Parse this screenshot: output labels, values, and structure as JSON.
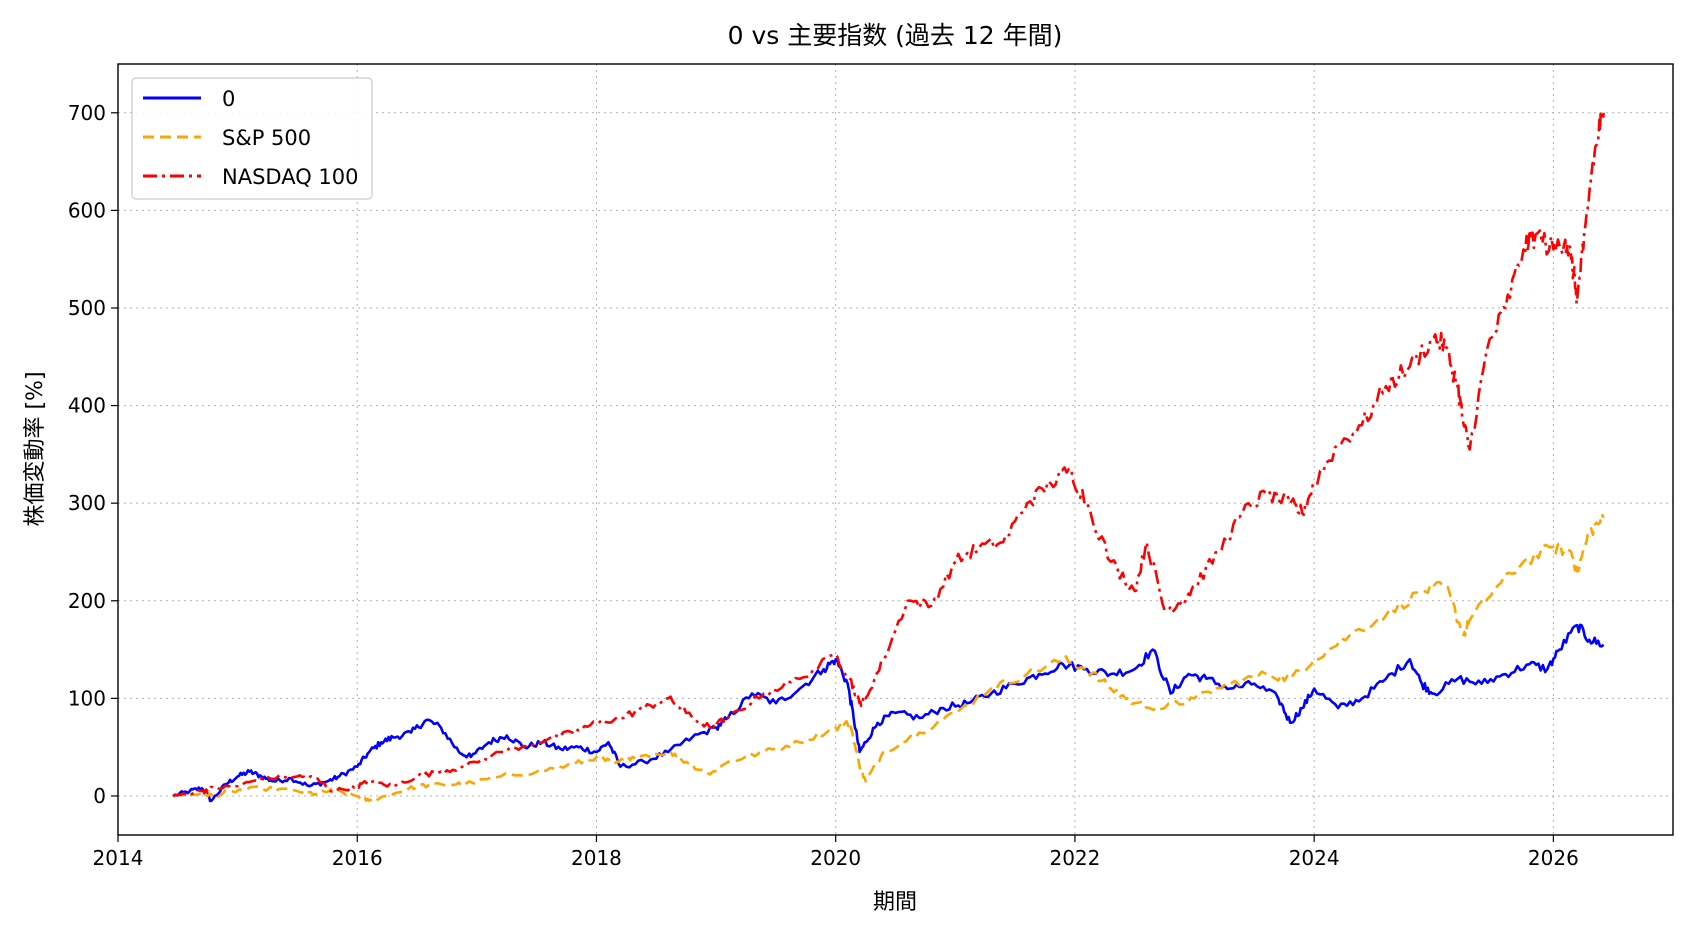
{
  "chart_data": {
    "type": "line",
    "title": "0 vs 主要指数 (過去 12 年間)",
    "xlabel": "期間",
    "ylabel": "株価変動率 [%]",
    "xlim": [
      2014.0,
      2027.0
    ],
    "ylim": [
      -40,
      750
    ],
    "xticks": [
      2014,
      2016,
      2018,
      2020,
      2022,
      2024,
      2026
    ],
    "xtick_labels": [
      "2014",
      "2016",
      "2018",
      "2020",
      "2022",
      "2024",
      "2026"
    ],
    "yticks": [
      0,
      100,
      200,
      300,
      400,
      500,
      600,
      700
    ],
    "ytick_labels": [
      "0",
      "100",
      "200",
      "300",
      "400",
      "500",
      "600",
      "700"
    ],
    "grid": true,
    "legend_position": "top-left",
    "series": [
      {
        "name": "0",
        "color": "#0000ff",
        "style": "solid",
        "x": [
          2014.46,
          2014.6,
          2014.7,
          2014.78,
          2014.9,
          2015.0,
          2015.1,
          2015.2,
          2015.3,
          2015.45,
          2015.6,
          2015.75,
          2015.85,
          2016.0,
          2016.1,
          2016.2,
          2016.3,
          2016.45,
          2016.58,
          2016.7,
          2016.85,
          2016.95,
          2017.1,
          2017.25,
          2017.4,
          2017.55,
          2017.7,
          2017.85,
          2018.0,
          2018.1,
          2018.2,
          2018.4,
          2018.6,
          2018.8,
          2019.0,
          2019.1,
          2019.3,
          2019.5,
          2019.7,
          2019.9,
          2020.0,
          2020.1,
          2020.15,
          2020.2,
          2020.25,
          2020.35,
          2020.5,
          2020.7,
          2020.9,
          2021.1,
          2021.3,
          2021.5,
          2021.7,
          2021.9,
          2022.1,
          2022.3,
          2022.5,
          2022.65,
          2022.8,
          2022.95,
          2023.1,
          2023.3,
          2023.5,
          2023.7,
          2023.8,
          2023.9,
          2024.0,
          2024.2,
          2024.4,
          2024.6,
          2024.8,
          2024.9,
          2025.0,
          2025.2,
          2025.4,
          2025.6,
          2025.8,
          2025.95,
          2026.05,
          2026.2,
          2026.3,
          2026.42
        ],
        "y": [
          0,
          5,
          8,
          -5,
          12,
          20,
          25,
          20,
          15,
          18,
          10,
          15,
          20,
          30,
          45,
          55,
          60,
          65,
          78,
          70,
          45,
          40,
          55,
          62,
          50,
          55,
          48,
          50,
          45,
          55,
          30,
          35,
          45,
          60,
          70,
          80,
          105,
          95,
          110,
          130,
          140,
          115,
          80,
          45,
          55,
          75,
          85,
          80,
          90,
          95,
          105,
          115,
          125,
          135,
          130,
          125,
          130,
          150,
          105,
          125,
          120,
          110,
          115,
          100,
          75,
          90,
          110,
          90,
          100,
          120,
          140,
          115,
          105,
          120,
          115,
          125,
          135,
          130,
          150,
          175,
          160,
          155
        ]
      },
      {
        "name": "S&P 500",
        "color": "#ffa500",
        "style": "dashed",
        "x": [
          2014.46,
          2014.7,
          2014.8,
          2014.95,
          2015.2,
          2015.5,
          2015.65,
          2015.8,
          2016.0,
          2016.1,
          2016.3,
          2016.5,
          2016.7,
          2016.9,
          2017.2,
          2017.5,
          2017.8,
          2018.0,
          2018.15,
          2018.3,
          2018.6,
          2018.75,
          2018.95,
          2019.1,
          2019.4,
          2019.7,
          2020.0,
          2020.12,
          2020.2,
          2020.25,
          2020.4,
          2020.7,
          2021.0,
          2021.3,
          2021.6,
          2021.9,
          2022.1,
          2022.3,
          2022.5,
          2022.75,
          2023.0,
          2023.3,
          2023.6,
          2023.8,
          2024.0,
          2024.3,
          2024.6,
          2024.9,
          2025.1,
          2025.25,
          2025.3,
          2025.5,
          2025.75,
          2026.0,
          2026.15,
          2026.2,
          2026.3,
          2026.42
        ],
        "y": [
          0,
          3,
          0,
          5,
          8,
          5,
          2,
          6,
          0,
          -5,
          2,
          10,
          12,
          12,
          20,
          25,
          32,
          40,
          33,
          40,
          45,
          35,
          22,
          35,
          45,
          55,
          70,
          75,
          30,
          15,
          45,
          65,
          85,
          110,
          125,
          140,
          130,
          110,
          95,
          90,
          100,
          115,
          125,
          120,
          140,
          165,
          185,
          210,
          215,
          165,
          180,
          210,
          240,
          255,
          250,
          230,
          270,
          285
        ]
      },
      {
        "name": "NASDAQ 100",
        "color": "#ff0000",
        "style": "dashdot",
        "x": [
          2014.46,
          2014.7,
          2014.8,
          2015.0,
          2015.2,
          2015.5,
          2015.65,
          2015.8,
          2016.0,
          2016.1,
          2016.3,
          2016.5,
          2016.7,
          2016.9,
          2017.2,
          2017.5,
          2017.8,
          2018.0,
          2018.2,
          2018.4,
          2018.6,
          2018.75,
          2018.95,
          2019.1,
          2019.4,
          2019.7,
          2020.0,
          2020.12,
          2020.2,
          2020.25,
          2020.4,
          2020.6,
          2020.8,
          2021.0,
          2021.2,
          2021.4,
          2021.6,
          2021.8,
          2021.95,
          2022.1,
          2022.3,
          2022.5,
          2022.6,
          2022.75,
          2022.9,
          2023.0,
          2023.2,
          2023.4,
          2023.6,
          2023.8,
          2023.9,
          2024.0,
          2024.2,
          2024.4,
          2024.6,
          2024.8,
          2025.0,
          2025.1,
          2025.2,
          2025.25,
          2025.3,
          2025.45,
          2025.6,
          2025.75,
          2025.85,
          2026.0,
          2026.1,
          2026.15,
          2026.2,
          2026.25,
          2026.32,
          2026.38,
          2026.42
        ],
        "y": [
          0,
          5,
          8,
          10,
          18,
          20,
          18,
          5,
          10,
          15,
          10,
          20,
          25,
          30,
          45,
          55,
          65,
          75,
          80,
          90,
          100,
          85,
          70,
          80,
          105,
          120,
          145,
          120,
          95,
          100,
          140,
          200,
          195,
          240,
          255,
          260,
          300,
          320,
          335,
          300,
          240,
          210,
          260,
          190,
          200,
          215,
          250,
          290,
          310,
          300,
          290,
          320,
          360,
          380,
          420,
          440,
          470,
          460,
          420,
          380,
          355,
          460,
          500,
          560,
          575,
          560,
          570,
          550,
          510,
          560,
          640,
          680,
          700
        ]
      }
    ]
  }
}
